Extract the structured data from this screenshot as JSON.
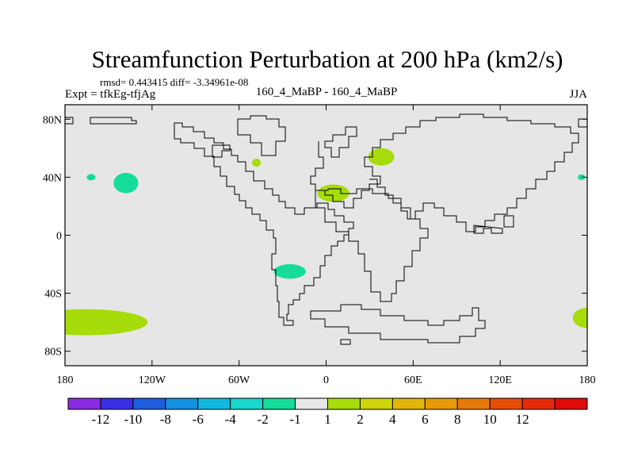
{
  "chart_data": {
    "type": "heatmap",
    "title": "Streamfunction Perturbation at 200 hPa (km2/s)",
    "stats": "rmsd= 0.443415 diff= -3.34961e-08",
    "left_label": "Expt = tfkEg-tfjAg",
    "center_label": "160_4_MaBP - 160_4_MaBP",
    "right_label": "JJA",
    "x_ticks": [
      {
        "lon": -180,
        "label": "180"
      },
      {
        "lon": -120,
        "label": "120W"
      },
      {
        "lon": -60,
        "label": "60W"
      },
      {
        "lon": 0,
        "label": "0"
      },
      {
        "lon": 60,
        "label": "60E"
      },
      {
        "lon": 120,
        "label": "120E"
      },
      {
        "lon": 180,
        "label": "180"
      }
    ],
    "y_ticks": [
      {
        "lat": 80,
        "label": "80N"
      },
      {
        "lat": 40,
        "label": "40N"
      },
      {
        "lat": 0,
        "label": "0"
      },
      {
        "lat": -40,
        "label": "40S"
      },
      {
        "lat": -80,
        "label": "80S"
      }
    ],
    "xlim": [
      -180,
      180
    ],
    "ylim": [
      -90,
      90
    ],
    "colorbar": {
      "colors": [
        "#8a2be2",
        "#3a2fe6",
        "#1e5fe0",
        "#1390e0",
        "#12b8e0",
        "#18d8cf",
        "#15dc9a",
        "#e6e6e6",
        "#a6dc0a",
        "#cfd30a",
        "#e3b40a",
        "#e69a08",
        "#e67a08",
        "#e64e08",
        "#e62a08",
        "#e00a0a"
      ],
      "labels": [
        "-12",
        "-10",
        "-8",
        "-6",
        "-4",
        "-2",
        "-1",
        "1",
        "2",
        "4",
        "6",
        "8",
        "10",
        "12"
      ]
    },
    "blobs": [
      {
        "lon": -165,
        "lat": -60,
        "rlon": 42,
        "rlat": 9,
        "color": "#a6dc0a"
      },
      {
        "lon": -180,
        "lat": -57,
        "rlon": 7,
        "rlat": 5,
        "color": "#a6dc0a"
      },
      {
        "lon": 180,
        "lat": -57,
        "rlon": 10,
        "rlat": 7,
        "color": "#a6dc0a"
      },
      {
        "lon": -138,
        "lat": 36,
        "rlon": 8.5,
        "rlat": 7,
        "color": "#15dc9a"
      },
      {
        "lon": -162,
        "lat": 40,
        "rlon": 3,
        "rlat": 2.2,
        "color": "#15dc9a"
      },
      {
        "lon": 176,
        "lat": 40,
        "rlon": 2.5,
        "rlat": 2,
        "color": "#15dc9a"
      },
      {
        "lon": -48,
        "lat": 50,
        "rlon": 3,
        "rlat": 2.8,
        "color": "#a6dc0a"
      },
      {
        "lon": 38,
        "lat": 54,
        "rlon": 9,
        "rlat": 6,
        "color": "#a6dc0a"
      },
      {
        "lon": 5,
        "lat": 29,
        "rlon": 11,
        "rlat": 6,
        "color": "#a6dc0a"
      },
      {
        "lon": -25,
        "lat": -25,
        "rlon": 11,
        "rlat": 5,
        "color": "#15dc9a"
      }
    ]
  }
}
